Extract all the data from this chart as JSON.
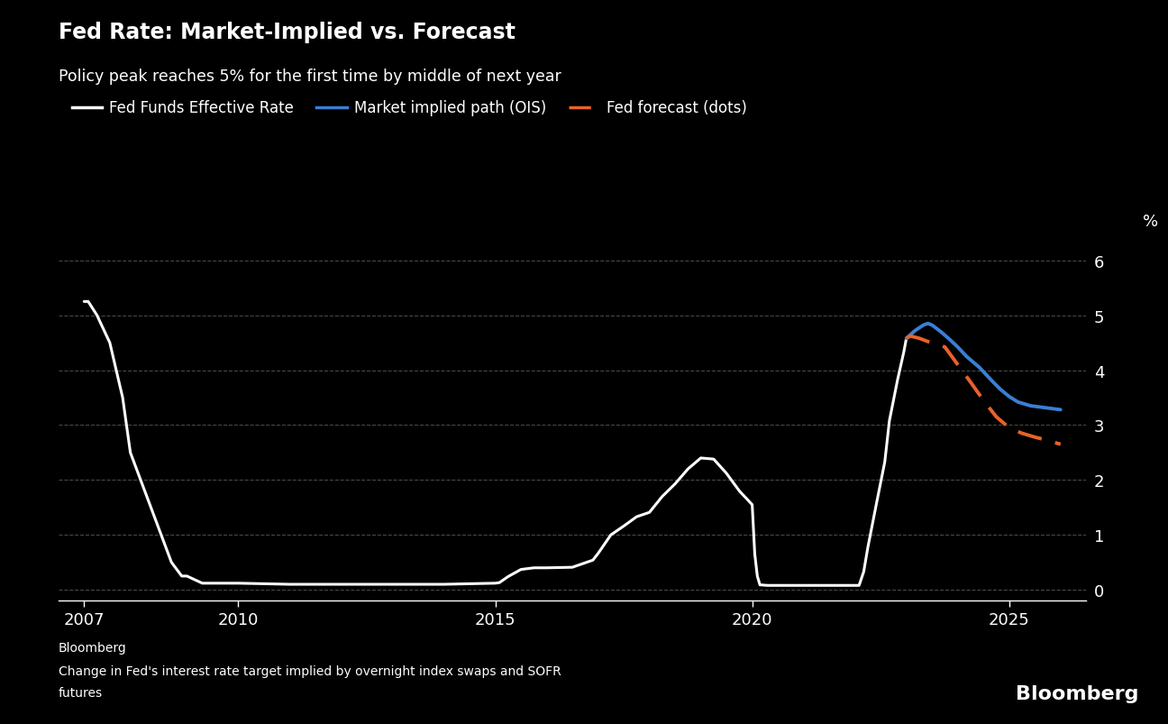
{
  "title": "Fed Rate: Market-Implied vs. Forecast",
  "subtitle": "Policy peak reaches 5% for the first time by middle of next year",
  "source_line1": "Bloomberg",
  "source_line2": "Change in Fed's interest rate target implied by overnight index swaps and SOFR",
  "source_line3": "futures",
  "bloomberg_watermark": "Bloomberg",
  "ylabel": "%",
  "ylim": [
    -0.2,
    6.4
  ],
  "yticks": [
    0,
    1,
    2,
    3,
    4,
    5,
    6
  ],
  "background_color": "#000000",
  "text_color": "#ffffff",
  "grid_color": "#555555",
  "axis_color": "#ffffff",
  "legend_items": [
    {
      "label": "Fed Funds Effective Rate",
      "color": "#ffffff",
      "linestyle": "solid"
    },
    {
      "label": "Market implied path (OIS)",
      "color": "#3a7fd5",
      "linestyle": "solid"
    },
    {
      "label": "Fed forecast (dots)",
      "color": "#e8622a",
      "linestyle": "dashed"
    }
  ],
  "fed_funds": {
    "x": [
      2007.0,
      2007.08,
      2007.25,
      2007.5,
      2007.75,
      2007.9,
      2008.0,
      2008.1,
      2008.3,
      2008.5,
      2008.7,
      2008.9,
      2009.0,
      2009.3,
      2009.6,
      2010.0,
      2011.0,
      2012.0,
      2013.0,
      2014.0,
      2015.0,
      2015.08,
      2015.25,
      2015.5,
      2015.75,
      2016.0,
      2016.5,
      2016.9,
      2017.0,
      2017.25,
      2017.5,
      2017.75,
      2018.0,
      2018.25,
      2018.5,
      2018.75,
      2019.0,
      2019.25,
      2019.5,
      2019.75,
      2020.0,
      2020.05,
      2020.1,
      2020.15,
      2020.3,
      2020.5,
      2020.75,
      2021.0,
      2021.5,
      2022.0,
      2022.08,
      2022.17,
      2022.25,
      2022.42,
      2022.58,
      2022.67,
      2022.83,
      2022.95,
      2023.0
    ],
    "y": [
      5.25,
      5.25,
      5.0,
      4.5,
      3.5,
      2.5,
      2.25,
      2.0,
      1.5,
      1.0,
      0.5,
      0.25,
      0.25,
      0.12,
      0.12,
      0.12,
      0.1,
      0.1,
      0.1,
      0.1,
      0.12,
      0.13,
      0.24,
      0.37,
      0.4,
      0.4,
      0.41,
      0.54,
      0.66,
      1.0,
      1.16,
      1.33,
      1.41,
      1.7,
      1.93,
      2.2,
      2.4,
      2.38,
      2.12,
      1.8,
      1.55,
      0.65,
      0.25,
      0.09,
      0.08,
      0.08,
      0.08,
      0.08,
      0.08,
      0.08,
      0.08,
      0.33,
      0.77,
      1.58,
      2.33,
      3.08,
      3.83,
      4.33,
      4.58
    ]
  },
  "ois_path": {
    "x": [
      2023.0,
      2023.17,
      2023.33,
      2023.42,
      2023.5,
      2023.67,
      2023.83,
      2024.0,
      2024.17,
      2024.42,
      2024.67,
      2024.83,
      2025.0,
      2025.17,
      2025.42,
      2025.67,
      2025.83,
      2026.0
    ],
    "y": [
      4.58,
      4.72,
      4.82,
      4.85,
      4.82,
      4.7,
      4.57,
      4.42,
      4.25,
      4.05,
      3.8,
      3.65,
      3.52,
      3.42,
      3.35,
      3.32,
      3.3,
      3.28
    ]
  },
  "fed_forecast": {
    "x": [
      2023.0,
      2023.08,
      2023.25,
      2023.42,
      2023.58,
      2023.75,
      2024.0,
      2024.25,
      2024.5,
      2024.75,
      2025.0,
      2025.25,
      2025.5,
      2025.75,
      2026.0
    ],
    "y": [
      4.58,
      4.62,
      4.58,
      4.52,
      4.48,
      4.42,
      4.1,
      3.78,
      3.45,
      3.15,
      2.95,
      2.85,
      2.78,
      2.72,
      2.65
    ]
  },
  "xlim": [
    2006.5,
    2026.5
  ],
  "xticks": [
    2007,
    2010,
    2015,
    2020,
    2025
  ]
}
